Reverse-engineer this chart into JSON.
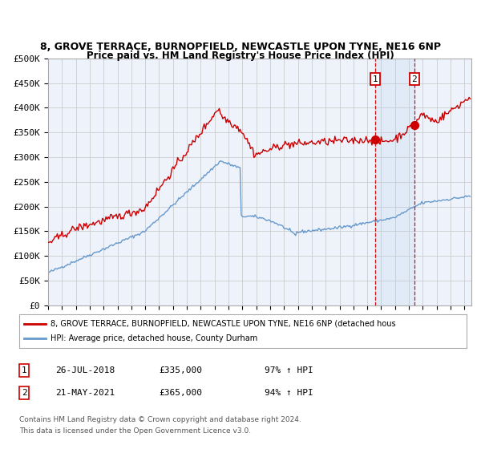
{
  "title1": "8, GROVE TERRACE, BURNOPFIELD, NEWCASTLE UPON TYNE, NE16 6NP",
  "title2": "Price paid vs. HM Land Registry's House Price Index (HPI)",
  "red_label": "8, GROVE TERRACE, BURNOPFIELD, NEWCASTLE UPON TYNE, NE16 6NP (detached hous",
  "blue_label": "HPI: Average price, detached house, County Durham",
  "annotation1_date": "26-JUL-2018",
  "annotation1_price": "£335,000",
  "annotation1_pct": "97% ↑ HPI",
  "annotation2_date": "21-MAY-2021",
  "annotation2_price": "£365,000",
  "annotation2_pct": "94% ↑ HPI",
  "sale1_year": 2018.57,
  "sale1_value": 335000,
  "sale2_year": 2021.38,
  "sale2_value": 365000,
  "ylim": [
    0,
    500000
  ],
  "yticks": [
    0,
    50000,
    100000,
    150000,
    200000,
    250000,
    300000,
    350000,
    400000,
    450000,
    500000
  ],
  "background_color": "#ffffff",
  "plot_bg_color": "#eef2fb",
  "grid_color": "#cccccc",
  "red_color": "#cc0000",
  "blue_color": "#6699cc",
  "footnote1": "Contains HM Land Registry data © Crown copyright and database right 2024.",
  "footnote2": "This data is licensed under the Open Government Licence v3.0."
}
